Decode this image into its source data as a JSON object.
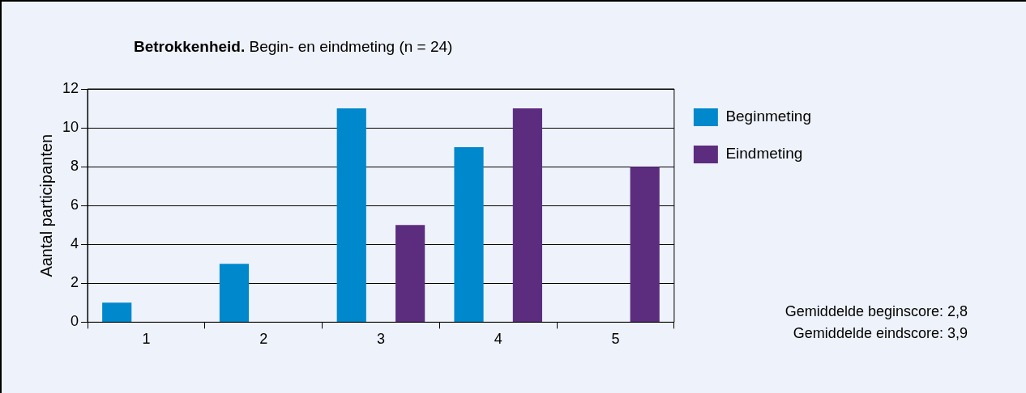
{
  "chart_data": {
    "type": "bar",
    "title": "Betrokkenheid. Begin- en eindmeting (n = 24)",
    "ylabel": "Aantal participanten",
    "categories": [
      "1",
      "2",
      "3",
      "4",
      "5"
    ],
    "series": [
      {
        "name": "Beginmeting",
        "color": "#0088cc",
        "values": [
          1,
          3,
          11,
          9,
          0
        ]
      },
      {
        "name": "Eindmeting",
        "color": "#5c2d7f",
        "values": [
          0,
          0,
          5,
          11,
          8
        ]
      }
    ],
    "ylim": [
      0,
      12
    ],
    "yticks": [
      0,
      2,
      4,
      6,
      8,
      10,
      12
    ],
    "grid": "y",
    "legend": "top right",
    "annotations": [
      "Gemiddelde beginscore: 2,8",
      "Gemiddelde eindscore: 3,9"
    ]
  }
}
